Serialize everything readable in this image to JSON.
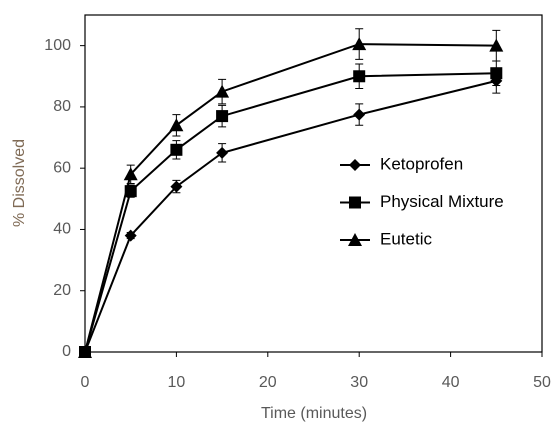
{
  "chart_data": {
    "type": "line",
    "x_label": "Time (minutes)",
    "y_label": "% Dissolved",
    "x": [
      0,
      5,
      10,
      15,
      30,
      45
    ],
    "series": [
      {
        "name": "Ketoprofen",
        "color": "#000000",
        "marker": "diamond",
        "values": [
          0,
          38,
          54,
          65,
          77.5,
          88.5
        ],
        "errors": [
          null,
          1,
          2,
          3,
          3.5,
          4
        ]
      },
      {
        "name": "Physical Mixture",
        "color": "#000000",
        "marker": "square",
        "values": [
          0,
          52.5,
          66,
          77,
          90,
          91
        ],
        "errors": [
          null,
          2,
          3,
          3.5,
          4,
          4
        ]
      },
      {
        "name": "Eutetic",
        "color": "#000000",
        "marker": "triangle",
        "values": [
          0,
          58,
          74,
          85,
          100.5,
          100
        ],
        "errors": [
          null,
          3,
          3.5,
          4,
          5,
          5
        ]
      }
    ],
    "xlim": [
      0,
      50
    ],
    "xticks": [
      0,
      10,
      20,
      30,
      40,
      50
    ],
    "ylim": [
      0,
      110
    ],
    "yticks": [
      0,
      20,
      40,
      60,
      80,
      100
    ],
    "grid": false,
    "legend": "right"
  }
}
